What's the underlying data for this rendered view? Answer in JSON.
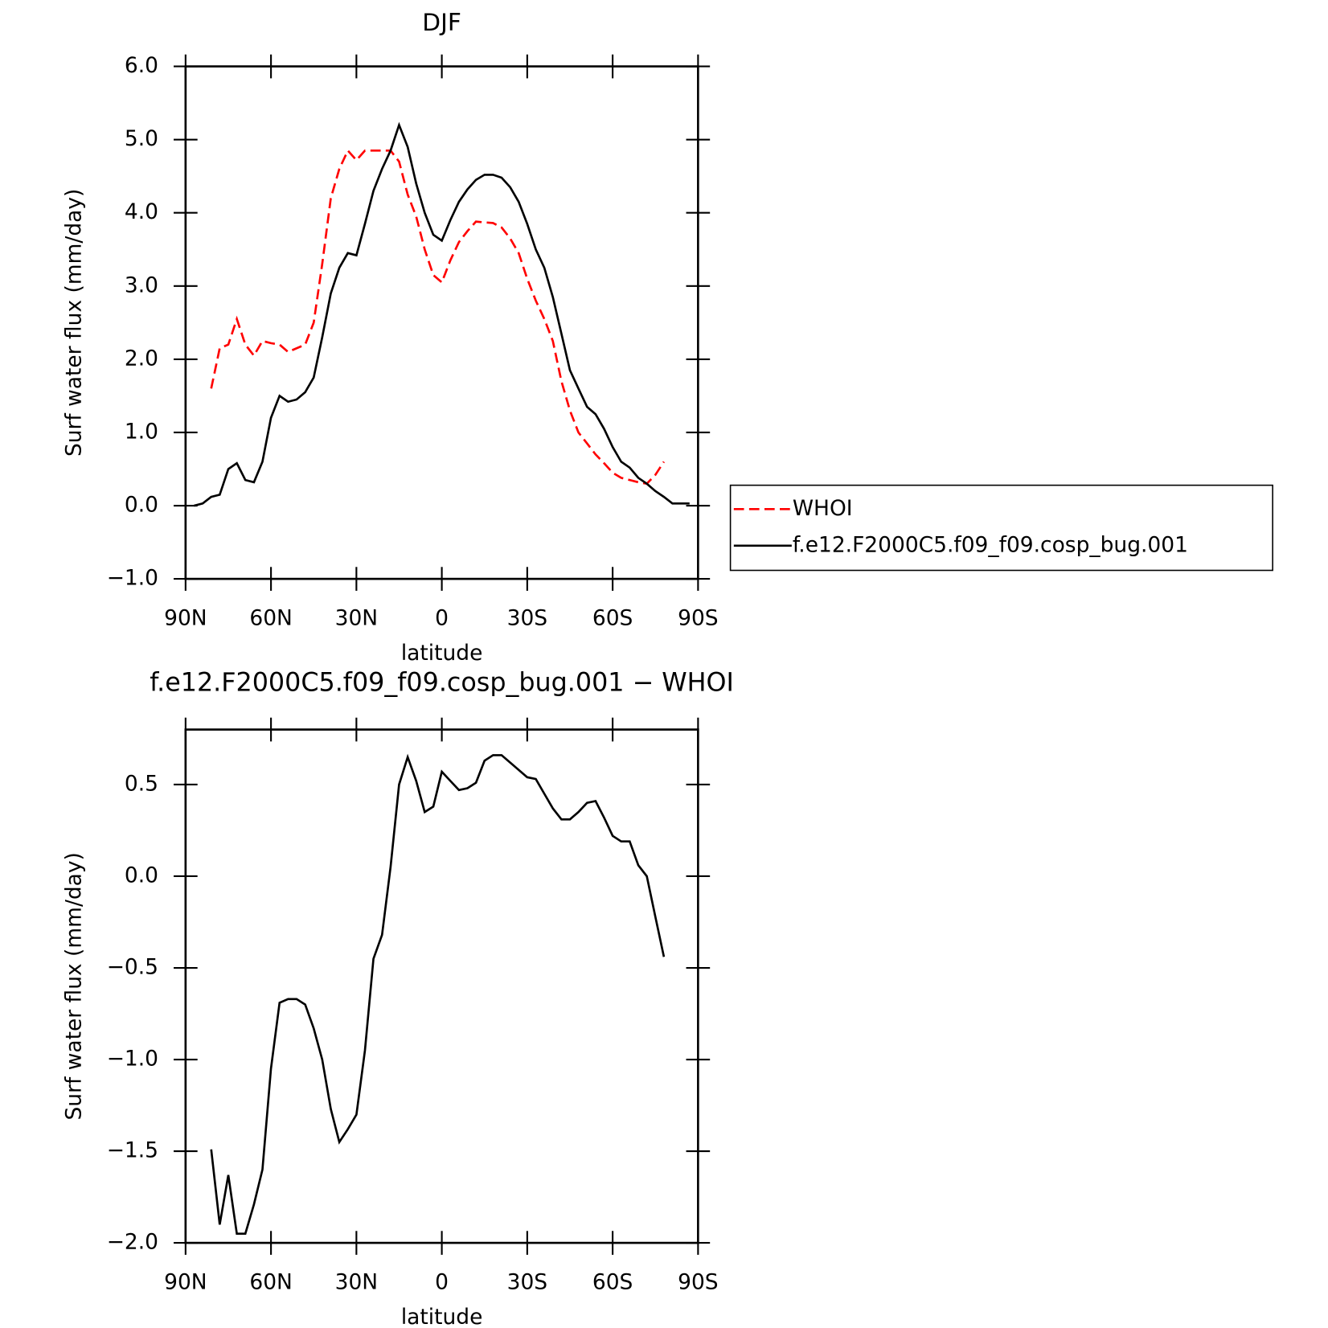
{
  "chart_data": [
    {
      "type": "line",
      "title": "DJF",
      "xlabel": "latitude",
      "ylabel": "Surf water flux (mm/day)",
      "x": [
        87,
        84,
        81,
        78,
        75,
        72,
        69,
        66,
        63,
        60,
        57,
        54,
        51,
        48,
        45,
        42,
        39,
        36,
        33,
        30,
        27,
        24,
        21,
        18,
        15,
        12,
        9,
        6,
        3,
        0,
        -3,
        -6,
        -9,
        -12,
        -15,
        -18,
        -21,
        -24,
        -27,
        -30,
        -33,
        -36,
        -39,
        -42,
        -45,
        -48,
        -51,
        -54,
        -57,
        -60,
        -63,
        -66,
        -69,
        -72,
        -75,
        -78,
        -81,
        -84,
        -87
      ],
      "series": [
        {
          "name": "WHOI",
          "color": "#ff0000",
          "dash": true,
          "values": [
            null,
            null,
            1.6,
            2.15,
            2.2,
            2.55,
            2.2,
            2.05,
            2.25,
            2.22,
            2.2,
            2.1,
            2.15,
            2.2,
            2.5,
            3.3,
            4.2,
            4.6,
            4.85,
            4.72,
            4.85,
            4.85,
            4.85,
            4.85,
            4.7,
            4.25,
            3.95,
            3.5,
            3.15,
            3.05,
            3.35,
            3.6,
            3.75,
            3.88,
            3.87,
            3.86,
            3.8,
            3.65,
            3.45,
            3.1,
            2.8,
            2.55,
            2.25,
            1.7,
            1.3,
            1.0,
            0.85,
            0.7,
            0.58,
            0.45,
            0.38,
            0.35,
            0.32,
            0.3,
            0.42,
            0.6,
            null,
            null,
            null
          ]
        },
        {
          "name": "f.e12.F2000C5.f09_f09.cosp_bug.001",
          "color": "#000000",
          "dash": false,
          "values": [
            0.0,
            0.03,
            0.12,
            0.15,
            0.5,
            0.58,
            0.35,
            0.32,
            0.6,
            1.2,
            1.5,
            1.42,
            1.45,
            1.55,
            1.75,
            2.3,
            2.9,
            3.25,
            3.45,
            3.42,
            3.85,
            4.3,
            4.6,
            4.85,
            5.2,
            4.9,
            4.4,
            4.0,
            3.7,
            3.62,
            3.9,
            4.15,
            4.32,
            4.45,
            4.52,
            4.52,
            4.48,
            4.35,
            4.15,
            3.85,
            3.5,
            3.25,
            2.85,
            2.35,
            1.85,
            1.6,
            1.35,
            1.25,
            1.05,
            0.8,
            0.6,
            0.52,
            0.38,
            0.3,
            0.2,
            0.12,
            0.03,
            0.03,
            0.03
          ]
        }
      ],
      "xlim": [
        90,
        -90
      ],
      "xticks": [
        {
          "value": 90,
          "label": "90N"
        },
        {
          "value": 60,
          "label": "60N"
        },
        {
          "value": 30,
          "label": "30N"
        },
        0,
        {
          "value": -30,
          "label": "30S"
        },
        {
          "value": -60,
          "label": "60S"
        },
        {
          "value": -90,
          "label": "90S"
        }
      ],
      "ylim": [
        -1.0,
        6.0
      ],
      "yticks": [
        {
          "value": -1.0,
          "label": "−1.0"
        },
        {
          "value": 0.0,
          "label": "0.0"
        },
        {
          "value": 1.0,
          "label": "1.0"
        },
        {
          "value": 2.0,
          "label": "2.0"
        },
        {
          "value": 3.0,
          "label": "3.0"
        },
        {
          "value": 4.0,
          "label": "4.0"
        },
        {
          "value": 5.0,
          "label": "5.0"
        },
        {
          "value": 6.0,
          "label": "6.0"
        }
      ],
      "legend": "right"
    },
    {
      "type": "line",
      "title": "f.e12.F2000C5.f09_f09.cosp_bug.001 − WHOI",
      "xlabel": "latitude",
      "ylabel": "Surf water flux (mm/day)",
      "x": [
        81,
        78,
        75,
        72,
        69,
        66,
        63,
        60,
        57,
        54,
        51,
        48,
        45,
        42,
        39,
        36,
        33,
        30,
        27,
        24,
        21,
        18,
        15,
        12,
        9,
        6,
        3,
        0,
        -3,
        -6,
        -9,
        -12,
        -15,
        -18,
        -21,
        -24,
        -27,
        -30,
        -33,
        -36,
        -39,
        -42,
        -45,
        -48,
        -51,
        -54,
        -57,
        -60,
        -63,
        -66,
        -69,
        -72,
        -75,
        -78
      ],
      "color": "#000000",
      "values": [
        -1.49,
        -1.9,
        -1.63,
        -1.95,
        -1.95,
        -1.79,
        -1.6,
        -1.05,
        -0.69,
        -0.67,
        -0.67,
        -0.7,
        -0.83,
        -1.0,
        -1.27,
        -1.45,
        -1.38,
        -1.3,
        -0.95,
        -0.45,
        -0.32,
        0.05,
        0.5,
        0.65,
        0.52,
        0.35,
        0.38,
        0.57,
        0.52,
        0.47,
        0.48,
        0.51,
        0.63,
        0.66,
        0.66,
        0.62,
        0.58,
        0.54,
        0.53,
        0.45,
        0.37,
        0.31,
        0.31,
        0.35,
        0.4,
        0.41,
        0.32,
        0.22,
        0.19,
        0.19,
        0.06,
        0.0,
        -0.22,
        -0.44
      ],
      "xlim": [
        90,
        -90
      ],
      "xticks": [
        {
          "value": 90,
          "label": "90N"
        },
        {
          "value": 60,
          "label": "60N"
        },
        {
          "value": 30,
          "label": "30N"
        },
        0,
        {
          "value": -30,
          "label": "30S"
        },
        {
          "value": -60,
          "label": "60S"
        },
        {
          "value": -90,
          "label": "90S"
        }
      ],
      "ylim": [
        -2.0,
        0.8
      ],
      "yticks": [
        {
          "value": -2.0,
          "label": "−2.0"
        },
        {
          "value": -1.5,
          "label": "−1.5"
        },
        {
          "value": -1.0,
          "label": "−1.0"
        },
        {
          "value": -0.5,
          "label": "−0.5"
        },
        {
          "value": 0.0,
          "label": "0.0"
        },
        {
          "value": 0.5,
          "label": "0.5"
        }
      ]
    }
  ]
}
